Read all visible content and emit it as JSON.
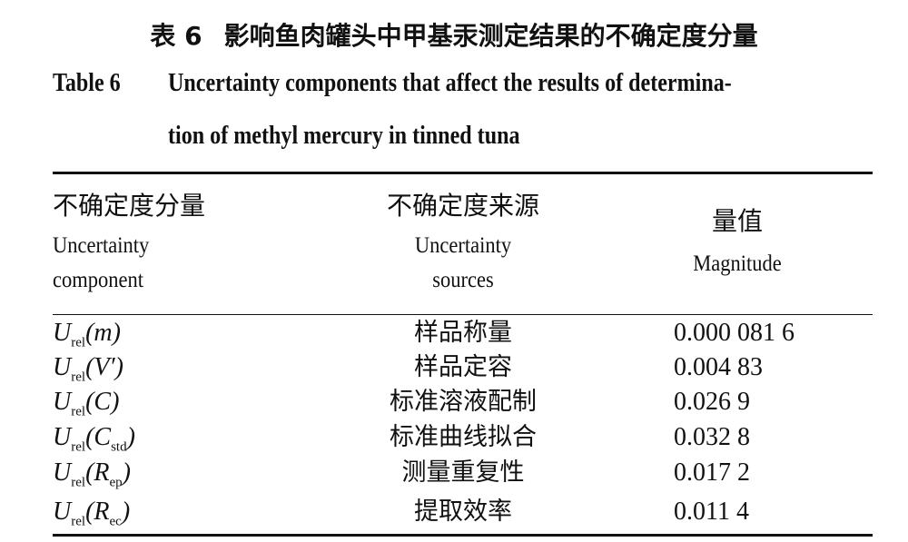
{
  "caption": {
    "zh_label": "表 6",
    "zh_title": "影响鱼肉罐头中甲基汞测定结果的不确定度分量",
    "en_label": "Table 6",
    "en_title_lines": [
      "Uncertainty components that affect the results of determina-",
      "tion of methyl mercury in tinned tuna"
    ]
  },
  "table": {
    "header": [
      {
        "zh": "不确定度分量",
        "en_lines": [
          "Uncertainty",
          "component"
        ]
      },
      {
        "zh": "不确定度来源",
        "en_lines": [
          "Uncertainty",
          "sources"
        ]
      },
      {
        "zh": "量值",
        "en_lines": [
          "Magnitude"
        ]
      }
    ],
    "rows": [
      {
        "component": [
          {
            "text": "U",
            "sub": "rel"
          },
          {
            "text": "(m)"
          }
        ],
        "source": "样品称量",
        "magnitude": "0.000 081 6"
      },
      {
        "component": [
          {
            "text": "U",
            "sub": "rel"
          },
          {
            "text": "(V′)"
          }
        ],
        "source": "样品定容",
        "magnitude": "0.004 83"
      },
      {
        "component": [
          {
            "text": "U",
            "sub": "rel"
          },
          {
            "text": "(C)"
          }
        ],
        "source": "标准溶液配制",
        "magnitude": "0.026 9"
      },
      {
        "component": [
          {
            "text": "U",
            "sub": "rel"
          },
          {
            "text": "(C",
            "sub": "std"
          },
          {
            "text": ")"
          }
        ],
        "source": "标准曲线拟合",
        "magnitude": "0.032 8"
      },
      {
        "component": [
          {
            "text": "U",
            "sub": "rel"
          },
          {
            "text": "(R",
            "sub": "ep"
          },
          {
            "text": ")"
          }
        ],
        "source": "测量重复性",
        "magnitude": "0.017 2"
      },
      {
        "component": [
          {
            "text": "U",
            "sub": "rel"
          },
          {
            "text": "(R",
            "sub": "ec"
          },
          {
            "text": ")"
          }
        ],
        "source": "提取效率",
        "magnitude": "0.011 4"
      }
    ]
  }
}
